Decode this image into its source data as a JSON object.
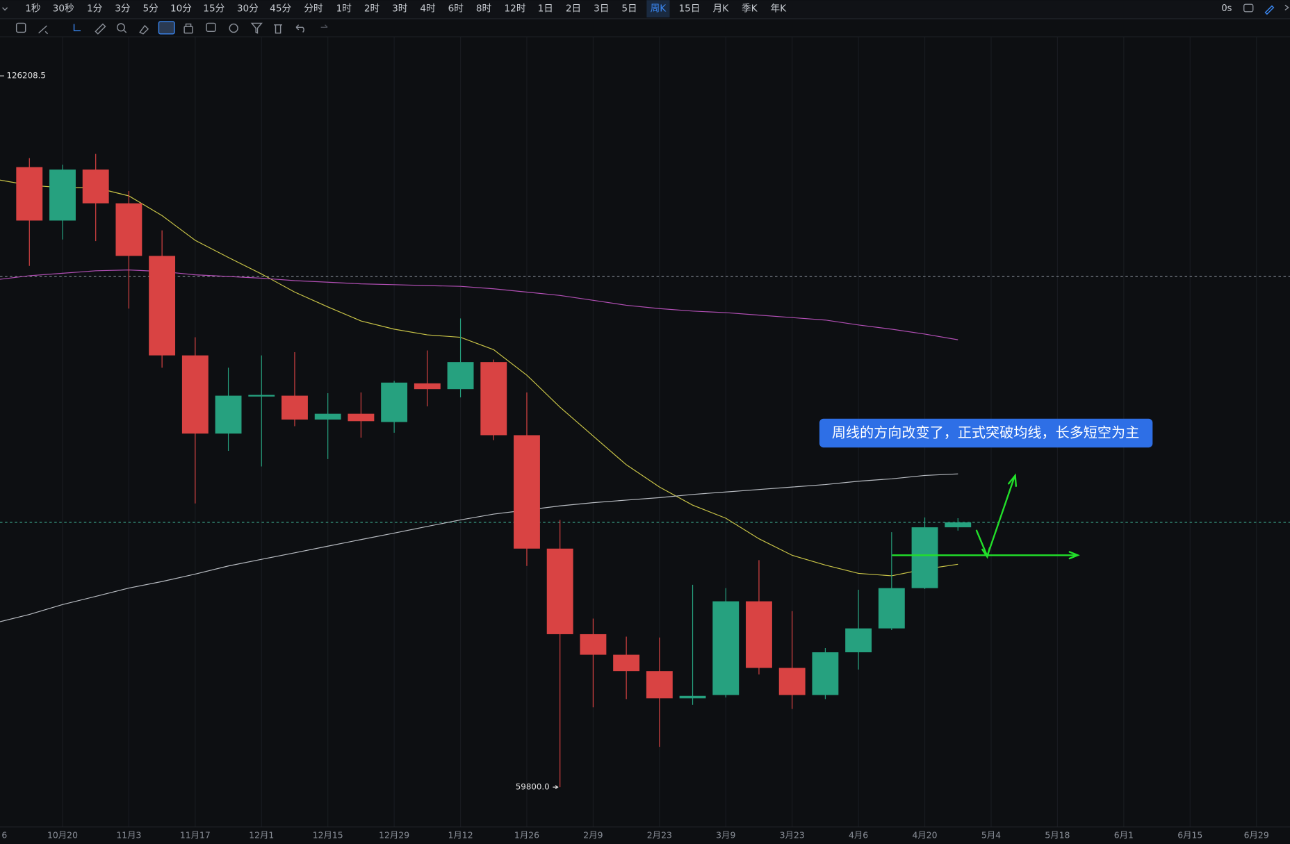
{
  "toolbar": {
    "intervals": [
      "1秒",
      "30秒",
      "1分",
      "3分",
      "5分",
      "10分",
      "15分",
      "30分",
      "45分",
      "分时",
      "1时",
      "2时",
      "3时",
      "4时",
      "6时",
      "8时",
      "12时",
      "1日",
      "2日",
      "3日",
      "5日",
      "周K",
      "15日",
      "月K",
      "季K",
      "年K"
    ],
    "active_index": 21,
    "timer": "0s"
  },
  "chart_data": {
    "type": "candlestick",
    "categories": [
      "6",
      null,
      "10月20",
      null,
      "11月3",
      null,
      "11月17",
      null,
      "12月1",
      null,
      "12月15",
      null,
      "12月29",
      null,
      "1月12",
      null,
      "1月26",
      null,
      "2月9",
      null,
      "2月23",
      null,
      "3月9",
      null,
      "3月23",
      null,
      "4月6",
      null,
      "4月20",
      null,
      "5月4",
      null,
      "5月18",
      null,
      "6月1",
      null,
      "6月15",
      null,
      "6月29"
    ],
    "open": [
      null,
      117690,
      112700,
      117460,
      114310,
      109400,
      100110,
      92810,
      96270,
      96350,
      94120,
      94660,
      93890,
      97500,
      96960,
      99490,
      92660,
      82070,
      74080,
      72160,
      70630,
      68090,
      68400,
      77150,
      70930,
      68400,
      72390,
      74620,
      78380,
      84060,
      null,
      null,
      null,
      null,
      null,
      null,
      null,
      null,
      null
    ],
    "high": [
      null,
      118530,
      117920,
      118920,
      115460,
      111780,
      101800,
      98960,
      100110,
      100410,
      96580,
      96650,
      97730,
      100570,
      103560,
      99720,
      96650,
      84750,
      75540,
      73850,
      73770,
      78690,
      78380,
      80990,
      76230,
      72780,
      78230,
      83600,
      84980,
      84910,
      null,
      null,
      null,
      null,
      null,
      null,
      null,
      null,
      null
    ],
    "low": [
      null,
      108470,
      110930,
      110780,
      104480,
      98960,
      86290,
      91200,
      89740,
      93500,
      90430,
      92430,
      92890,
      95350,
      96190,
      92200,
      80450,
      59800,
      67250,
      68020,
      63560,
      67480,
      68170,
      70320,
      67100,
      68020,
      70780,
      74470,
      78300,
      83750,
      null,
      null,
      null,
      null,
      null,
      null,
      null,
      null,
      null
    ],
    "close": [
      null,
      112700,
      117460,
      114310,
      109400,
      100110,
      92810,
      96350,
      96420,
      94120,
      94660,
      93970,
      97570,
      96960,
      99490,
      92660,
      82070,
      74080,
      72160,
      70630,
      68090,
      68320,
      77150,
      70930,
      68400,
      72390,
      74620,
      78380,
      84060,
      84520,
      null,
      null,
      null,
      null,
      null,
      null,
      null,
      null,
      null
    ],
    "up_color": "#26a17f",
    "down_color": "#d94343",
    "moving_averages": [
      {
        "color": "#c9c447",
        "values": [
          116540,
          116000,
          115770,
          115770,
          115000,
          113160,
          110850,
          109250,
          107710,
          106020,
          104640,
          103330,
          102560,
          102030,
          101800,
          100640,
          98260,
          95270,
          92580,
          89900,
          87820,
          86130,
          84910,
          82990,
          81450,
          80530,
          79760,
          79530,
          80150,
          80610,
          null,
          null,
          null,
          null,
          null,
          null,
          null,
          null,
          null
        ]
      },
      {
        "color": "#b24fb5",
        "values": [
          107170,
          107550,
          107780,
          108010,
          108090,
          107940,
          107630,
          107480,
          107320,
          107090,
          106940,
          106790,
          106710,
          106630,
          106560,
          106330,
          106020,
          105710,
          105250,
          104790,
          104480,
          104250,
          104100,
          103870,
          103640,
          103410,
          102950,
          102560,
          102100,
          101570,
          null,
          null,
          null,
          null,
          null,
          null,
          null,
          null,
          null
        ]
      },
      {
        "color": "#b8bcc2",
        "values": [
          75160,
          75920,
          76850,
          77610,
          78380,
          79000,
          79690,
          80450,
          81070,
          81680,
          82300,
          82910,
          83520,
          84140,
          84750,
          85290,
          85670,
          86060,
          86360,
          86600,
          86830,
          87130,
          87360,
          87590,
          87820,
          88050,
          88360,
          88590,
          88900,
          89050,
          null,
          null,
          null,
          null,
          null,
          null,
          null,
          null,
          null
        ]
      }
    ],
    "price_lines": [
      {
        "value": 107480,
        "color": "#7c828c"
      },
      {
        "value": 84520,
        "color": "#3a9a82"
      }
    ],
    "ylim": [
      56120,
      129820
    ],
    "extreme_labels": [
      126208.5,
      {
        "value": 59800,
        "label": "59800.0"
      }
    ],
    "annotation": "周线的方向改变了，正式突破均线，长多短空为主"
  }
}
